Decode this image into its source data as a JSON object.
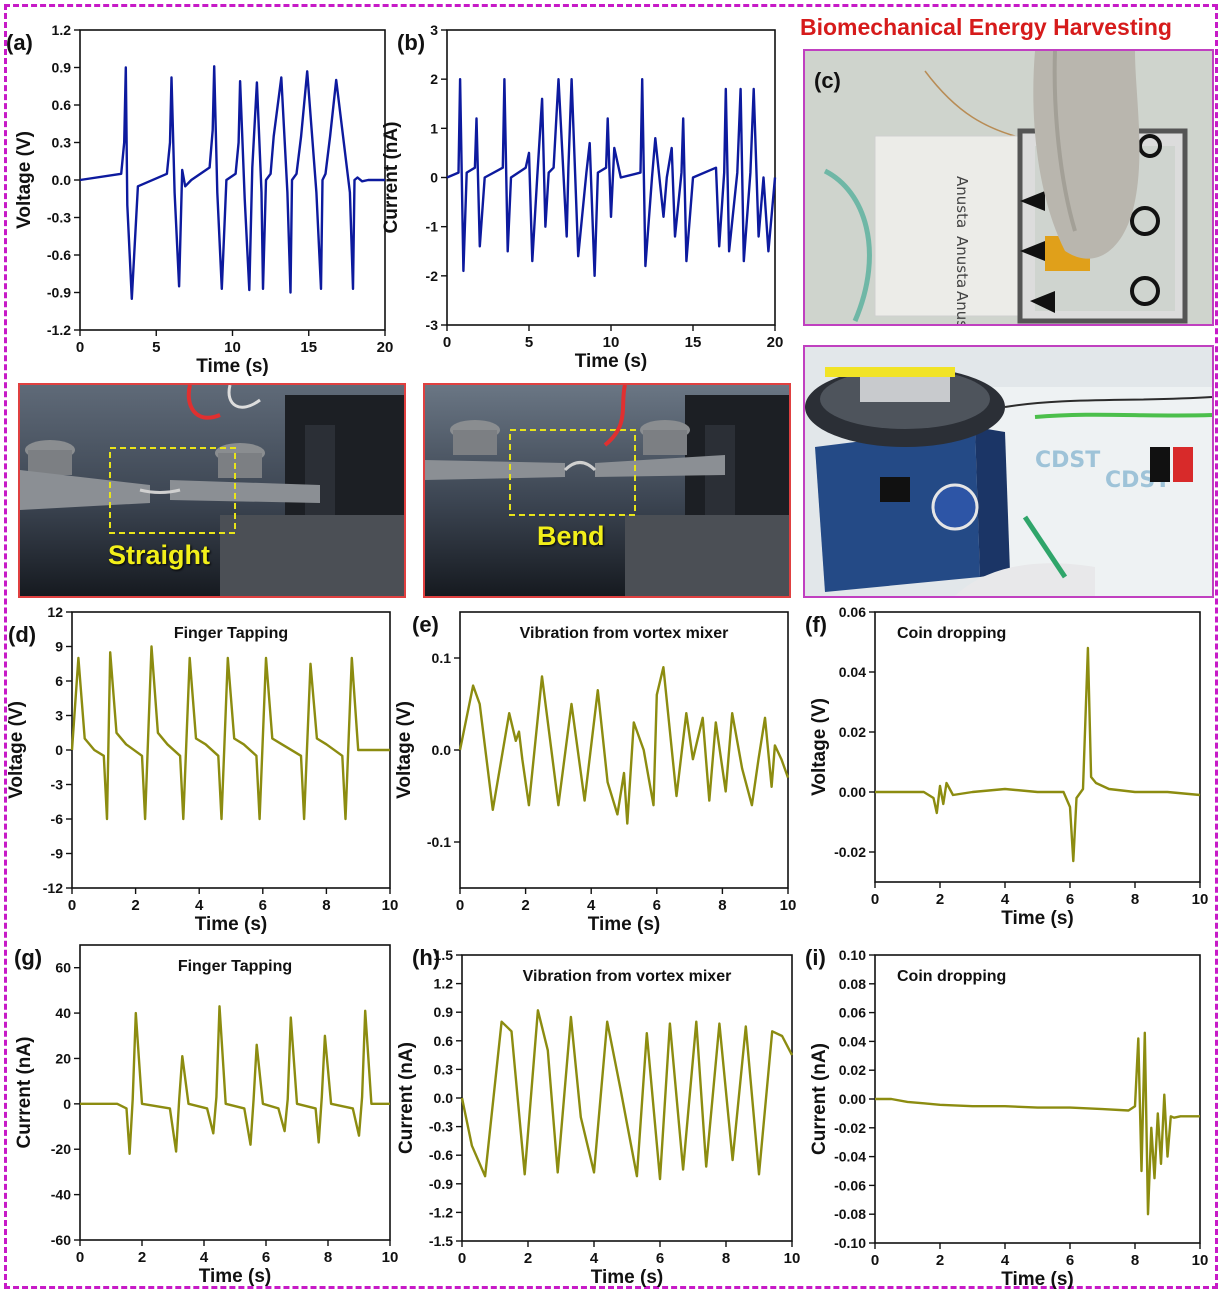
{
  "figure_title": "Biomechanical Energy Harvesting",
  "colors": {
    "blue_trace": "#0d1a9e",
    "olive_trace": "#8c8c10",
    "frame": "#c71ac7",
    "title": "#d61b1b",
    "photo_border_red": "#e04040",
    "photo_border_magenta": "#c040c0"
  },
  "photos": {
    "c": {
      "letter": "(c)"
    },
    "straight": {
      "label": "Straight"
    },
    "bend": {
      "label": "Bend"
    }
  },
  "chart_data": [
    {
      "id": "a",
      "type": "line",
      "letter": "(a)",
      "title": "",
      "xlabel": "Time (s)",
      "ylabel": "Voltage (V)",
      "xlim": [
        0,
        20
      ],
      "ylim": [
        -1.2,
        1.2
      ],
      "xticks": [
        0,
        5,
        10,
        15,
        20
      ],
      "yticks": [
        -1.2,
        -0.9,
        -0.6,
        -0.3,
        0.0,
        0.3,
        0.6,
        0.9,
        1.2
      ],
      "ytick_labels": [
        "-1.2",
        "-0.9",
        "-0.6",
        "-0.3",
        "0.0",
        "0.3",
        "0.6",
        "0.9",
        "1.2"
      ],
      "color": "#0d1a9e",
      "x": [
        0,
        2.7,
        2.9,
        3.0,
        3.1,
        3.4,
        3.8,
        5.7,
        5.9,
        6.0,
        6.2,
        6.5,
        6.7,
        6.9,
        7.3,
        8.5,
        8.7,
        8.8,
        9.0,
        9.3,
        9.6,
        10.2,
        10.4,
        10.5,
        10.8,
        11.1,
        11.3,
        11.6,
        11.9,
        12.0,
        12.2,
        12.5,
        12.7,
        13.2,
        13.6,
        13.8,
        13.9,
        14.2,
        14.5,
        14.9,
        15.5,
        15.8,
        15.9,
        16.1,
        16.4,
        16.8,
        17.7,
        17.9,
        18.0,
        18.2,
        18.5,
        18.9,
        20
      ],
      "y": [
        0.0,
        0.05,
        0.3,
        0.9,
        -0.2,
        -0.95,
        -0.05,
        0.05,
        0.3,
        0.82,
        -0.1,
        -0.85,
        0.08,
        -0.05,
        0.0,
        0.1,
        0.4,
        0.91,
        -0.1,
        -0.87,
        0.0,
        0.05,
        0.3,
        0.79,
        -0.15,
        -0.88,
        0.1,
        0.78,
        -0.1,
        -0.87,
        0.0,
        0.05,
        0.35,
        0.82,
        -0.1,
        -0.9,
        0.0,
        0.05,
        0.35,
        0.87,
        -0.1,
        -0.87,
        0.0,
        0.05,
        0.35,
        0.8,
        -0.1,
        -0.87,
        0.0,
        0.02,
        -0.01,
        0.0,
        0.0
      ]
    },
    {
      "id": "b",
      "type": "line",
      "letter": "(b)",
      "title": "",
      "xlabel": "Time (s)",
      "ylabel": "Current (nA)",
      "xlim": [
        0,
        20
      ],
      "ylim": [
        -3,
        3
      ],
      "xticks": [
        0,
        5,
        10,
        15,
        20
      ],
      "yticks": [
        -3,
        -2,
        -1,
        0,
        1,
        2,
        3
      ],
      "ytick_labels": [
        "-3",
        "-2",
        "-1",
        "0",
        "1",
        "2",
        "3"
      ],
      "color": "#0d1a9e",
      "x": [
        0,
        0.7,
        0.8,
        1.0,
        1.2,
        1.7,
        1.8,
        2.0,
        2.3,
        3.4,
        3.5,
        3.7,
        3.9,
        4.8,
        5.0,
        5.2,
        5.5,
        5.8,
        6.0,
        6.2,
        6.5,
        6.8,
        7.3,
        7.4,
        7.6,
        8.0,
        8.5,
        8.7,
        9.0,
        9.2,
        9.7,
        9.8,
        10.0,
        10.2,
        10.6,
        11.8,
        11.9,
        12.1,
        12.5,
        12.7,
        13.2,
        13.4,
        13.7,
        13.9,
        14.3,
        14.4,
        14.6,
        15.0,
        16.4,
        16.6,
        16.9,
        17.0,
        17.2,
        17.7,
        17.9,
        18.1,
        18.5,
        18.7,
        19.0,
        19.3,
        19.6,
        20
      ],
      "y": [
        0.0,
        0.1,
        2.0,
        -1.9,
        0.1,
        0.2,
        1.2,
        -1.4,
        0.0,
        0.2,
        2.0,
        -1.5,
        0.0,
        0.2,
        0.5,
        -1.7,
        0.0,
        1.6,
        -1.0,
        0.1,
        0.2,
        2.0,
        -1.2,
        0.2,
        2.0,
        -1.6,
        0.1,
        0.7,
        -2.0,
        0.1,
        0.2,
        1.2,
        -0.8,
        0.6,
        0.0,
        0.1,
        2.0,
        -1.8,
        0.0,
        0.8,
        -0.8,
        0.0,
        0.6,
        -1.2,
        0.1,
        1.2,
        -1.7,
        0.0,
        0.2,
        -1.4,
        0.1,
        1.8,
        -1.5,
        0.1,
        1.8,
        -1.7,
        0.1,
        1.8,
        -1.2,
        0.0,
        -1.5,
        0.0
      ]
    },
    {
      "id": "d",
      "type": "line",
      "letter": "(d)",
      "title": "Finger Tapping",
      "xlabel": "Time (s)",
      "ylabel": "Voltage (V)",
      "xlim": [
        0,
        10
      ],
      "ylim": [
        -12,
        12
      ],
      "xticks": [
        0,
        2,
        4,
        6,
        8,
        10
      ],
      "yticks": [
        -12,
        -9,
        -6,
        -3,
        0,
        3,
        6,
        9,
        12
      ],
      "ytick_labels": [
        "-12",
        "-9",
        "-6",
        "-3",
        "0",
        "3",
        "6",
        "9",
        "12"
      ],
      "color": "#8c8c10",
      "x": [
        0,
        0.2,
        0.4,
        0.7,
        1.0,
        1.1,
        1.2,
        1.4,
        1.7,
        2.2,
        2.3,
        2.5,
        2.7,
        3.0,
        3.4,
        3.5,
        3.7,
        3.9,
        4.2,
        4.6,
        4.7,
        4.9,
        5.1,
        5.4,
        5.8,
        5.9,
        6.1,
        6.3,
        6.6,
        7.2,
        7.3,
        7.5,
        7.7,
        8.0,
        8.5,
        8.6,
        8.8,
        9.0,
        10.0
      ],
      "y": [
        0.0,
        8.0,
        1.0,
        0.0,
        -0.5,
        -6.0,
        8.5,
        1.5,
        0.5,
        -0.5,
        -6.0,
        9.0,
        1.5,
        0.5,
        -0.5,
        -6.0,
        8.0,
        1.0,
        0.5,
        -0.5,
        -6.0,
        8.0,
        1.0,
        0.5,
        -0.5,
        -6.0,
        8.0,
        1.0,
        0.5,
        -0.5,
        -6.0,
        7.5,
        1.0,
        0.5,
        -0.5,
        -6.0,
        8.0,
        0.0,
        0.0
      ]
    },
    {
      "id": "e",
      "type": "line",
      "letter": "(e)",
      "title": "Vibration from vortex mixer",
      "xlabel": "Time (s)",
      "ylabel": "Voltage (V)",
      "xlim": [
        0,
        10
      ],
      "ylim": [
        -0.15,
        0.15
      ],
      "xticks": [
        0,
        2,
        4,
        6,
        8,
        10
      ],
      "yticks": [
        -0.1,
        0.0,
        0.1
      ],
      "ytick_labels": [
        "-0.1",
        "0.0",
        "0.1"
      ],
      "color": "#8c8c10",
      "x": [
        0,
        0.4,
        0.6,
        1.0,
        1.5,
        1.7,
        1.8,
        1.9,
        2.1,
        2.5,
        3.0,
        3.4,
        3.8,
        4.2,
        4.5,
        4.8,
        5.0,
        5.1,
        5.3,
        5.6,
        5.9,
        6.0,
        6.2,
        6.6,
        6.9,
        7.1,
        7.4,
        7.6,
        7.8,
        8.1,
        8.3,
        8.6,
        8.9,
        9.1,
        9.3,
        9.5,
        9.6,
        9.8,
        10.0
      ],
      "y": [
        0.0,
        0.07,
        0.05,
        -0.065,
        0.04,
        0.01,
        0.02,
        -0.01,
        -0.06,
        0.08,
        -0.06,
        0.05,
        -0.055,
        0.065,
        -0.035,
        -0.07,
        -0.025,
        -0.08,
        0.03,
        0.0,
        -0.06,
        0.06,
        0.09,
        -0.05,
        0.04,
        -0.01,
        0.035,
        -0.055,
        0.03,
        -0.045,
        0.04,
        -0.02,
        -0.06,
        -0.01,
        0.035,
        -0.04,
        0.005,
        -0.01,
        -0.03
      ]
    },
    {
      "id": "f",
      "type": "line",
      "letter": "(f)",
      "title": "Coin dropping",
      "xlabel": "Time (s)",
      "ylabel": "Voltage (V)",
      "xlim": [
        0,
        10
      ],
      "ylim": [
        -0.03,
        0.06
      ],
      "xticks": [
        0,
        2,
        4,
        6,
        8,
        10
      ],
      "yticks": [
        -0.02,
        0.0,
        0.02,
        0.04,
        0.06
      ],
      "ytick_labels": [
        "-0.02",
        "0.00",
        "0.02",
        "0.04",
        "0.06"
      ],
      "color": "#8c8c10",
      "x": [
        0,
        1.5,
        1.8,
        1.9,
        2.0,
        2.1,
        2.2,
        2.4,
        3.0,
        4.0,
        5.0,
        5.8,
        6.0,
        6.1,
        6.2,
        6.4,
        6.55,
        6.65,
        6.8,
        7.2,
        8.0,
        9.0,
        10.0
      ],
      "y": [
        0.0,
        0.0,
        -0.002,
        -0.007,
        0.002,
        -0.004,
        0.003,
        -0.001,
        0.0,
        0.001,
        0.0,
        0.0,
        -0.005,
        -0.023,
        -0.002,
        0.001,
        0.048,
        0.005,
        0.003,
        0.001,
        0.0,
        0.0,
        -0.001
      ]
    },
    {
      "id": "g",
      "type": "line",
      "letter": "(g)",
      "title": "Finger Tapping",
      "xlabel": "Time (s)",
      "ylabel": "Current (nA)",
      "xlim": [
        0,
        10
      ],
      "ylim": [
        -60,
        70
      ],
      "xticks": [
        0,
        2,
        4,
        6,
        8,
        10
      ],
      "yticks": [
        -60,
        -40,
        -20,
        0,
        20,
        40,
        60
      ],
      "ytick_labels": [
        "-60",
        "-40",
        "-20",
        "0",
        "20",
        "40",
        "60"
      ],
      "color": "#8c8c10",
      "x": [
        0,
        1.2,
        1.5,
        1.6,
        1.7,
        1.8,
        2.0,
        2.9,
        3.1,
        3.2,
        3.3,
        3.5,
        4.1,
        4.3,
        4.4,
        4.5,
        4.7,
        5.3,
        5.5,
        5.6,
        5.7,
        5.9,
        6.4,
        6.6,
        6.7,
        6.8,
        7.0,
        7.6,
        7.7,
        7.8,
        7.9,
        8.1,
        8.8,
        9.0,
        9.1,
        9.2,
        9.4,
        10.0
      ],
      "y": [
        0,
        0,
        -2,
        -22,
        2,
        40,
        0,
        -2,
        -21,
        2,
        21,
        0,
        -2,
        -13,
        3,
        43,
        0,
        -2,
        -18,
        2,
        26,
        0,
        -2,
        -12,
        2,
        38,
        0,
        -2,
        -17,
        3,
        30,
        0,
        -2,
        -14,
        3,
        41,
        0,
        0
      ]
    },
    {
      "id": "h",
      "type": "line",
      "letter": "(h)",
      "title": "Vibration from vortex mixer",
      "xlabel": "Time (s)",
      "ylabel": "Current (nA)",
      "xlim": [
        0,
        10
      ],
      "ylim": [
        -1.5,
        1.5
      ],
      "xticks": [
        0,
        2,
        4,
        6,
        8,
        10
      ],
      "yticks": [
        -1.5,
        -1.2,
        -0.9,
        -0.6,
        -0.3,
        0.0,
        0.3,
        0.6,
        0.9,
        1.2,
        1.5
      ],
      "ytick_labels": [
        "-1.5",
        "-1.2",
        "-0.9",
        "-0.6",
        "-0.3",
        "0.0",
        "0.3",
        "0.6",
        "0.9",
        "1.2",
        "1.5"
      ],
      "color": "#8c8c10",
      "x": [
        0,
        0.3,
        0.7,
        1.2,
        1.5,
        1.9,
        2.3,
        2.6,
        2.9,
        3.3,
        3.6,
        4.0,
        4.4,
        4.8,
        5.3,
        5.6,
        6.0,
        6.3,
        6.7,
        7.1,
        7.4,
        7.8,
        8.2,
        8.6,
        9.0,
        9.4,
        9.7,
        10.0
      ],
      "y": [
        0.0,
        -0.5,
        -0.82,
        0.8,
        0.7,
        -0.8,
        0.92,
        0.5,
        -0.78,
        0.85,
        -0.2,
        -0.78,
        0.8,
        0.1,
        -0.82,
        0.68,
        -0.85,
        0.78,
        -0.75,
        0.8,
        -0.72,
        0.78,
        -0.65,
        0.75,
        -0.8,
        0.7,
        0.65,
        0.45
      ]
    },
    {
      "id": "i",
      "type": "line",
      "letter": "(i)",
      "title": "Coin dropping",
      "xlabel": "Time (s)",
      "ylabel": "Current (nA)",
      "xlim": [
        0,
        10
      ],
      "ylim": [
        -0.1,
        0.1
      ],
      "xticks": [
        0,
        2,
        4,
        6,
        8,
        10
      ],
      "yticks": [
        -0.1,
        -0.08,
        -0.06,
        -0.04,
        -0.02,
        0.0,
        0.02,
        0.04,
        0.06,
        0.08,
        0.1
      ],
      "ytick_labels": [
        "-0.10",
        "-0.08",
        "-0.06",
        "-0.04",
        "-0.02",
        "0.00",
        "0.02",
        "0.04",
        "0.06",
        "0.08",
        "0.10"
      ],
      "color": "#8c8c10",
      "x": [
        0,
        0.5,
        1.0,
        1.5,
        2.0,
        3.0,
        4.0,
        5.0,
        6.0,
        7.0,
        7.8,
        8.0,
        8.1,
        8.2,
        8.3,
        8.4,
        8.5,
        8.6,
        8.7,
        8.8,
        8.9,
        9.0,
        9.1,
        9.2,
        9.4,
        10.0
      ],
      "y": [
        0.0,
        0.0,
        -0.002,
        -0.003,
        -0.004,
        -0.005,
        -0.005,
        -0.006,
        -0.006,
        -0.007,
        -0.008,
        -0.005,
        0.042,
        -0.05,
        0.046,
        -0.08,
        -0.02,
        -0.055,
        -0.01,
        -0.045,
        0.003,
        -0.04,
        -0.012,
        -0.013,
        -0.012,
        -0.012
      ]
    }
  ]
}
